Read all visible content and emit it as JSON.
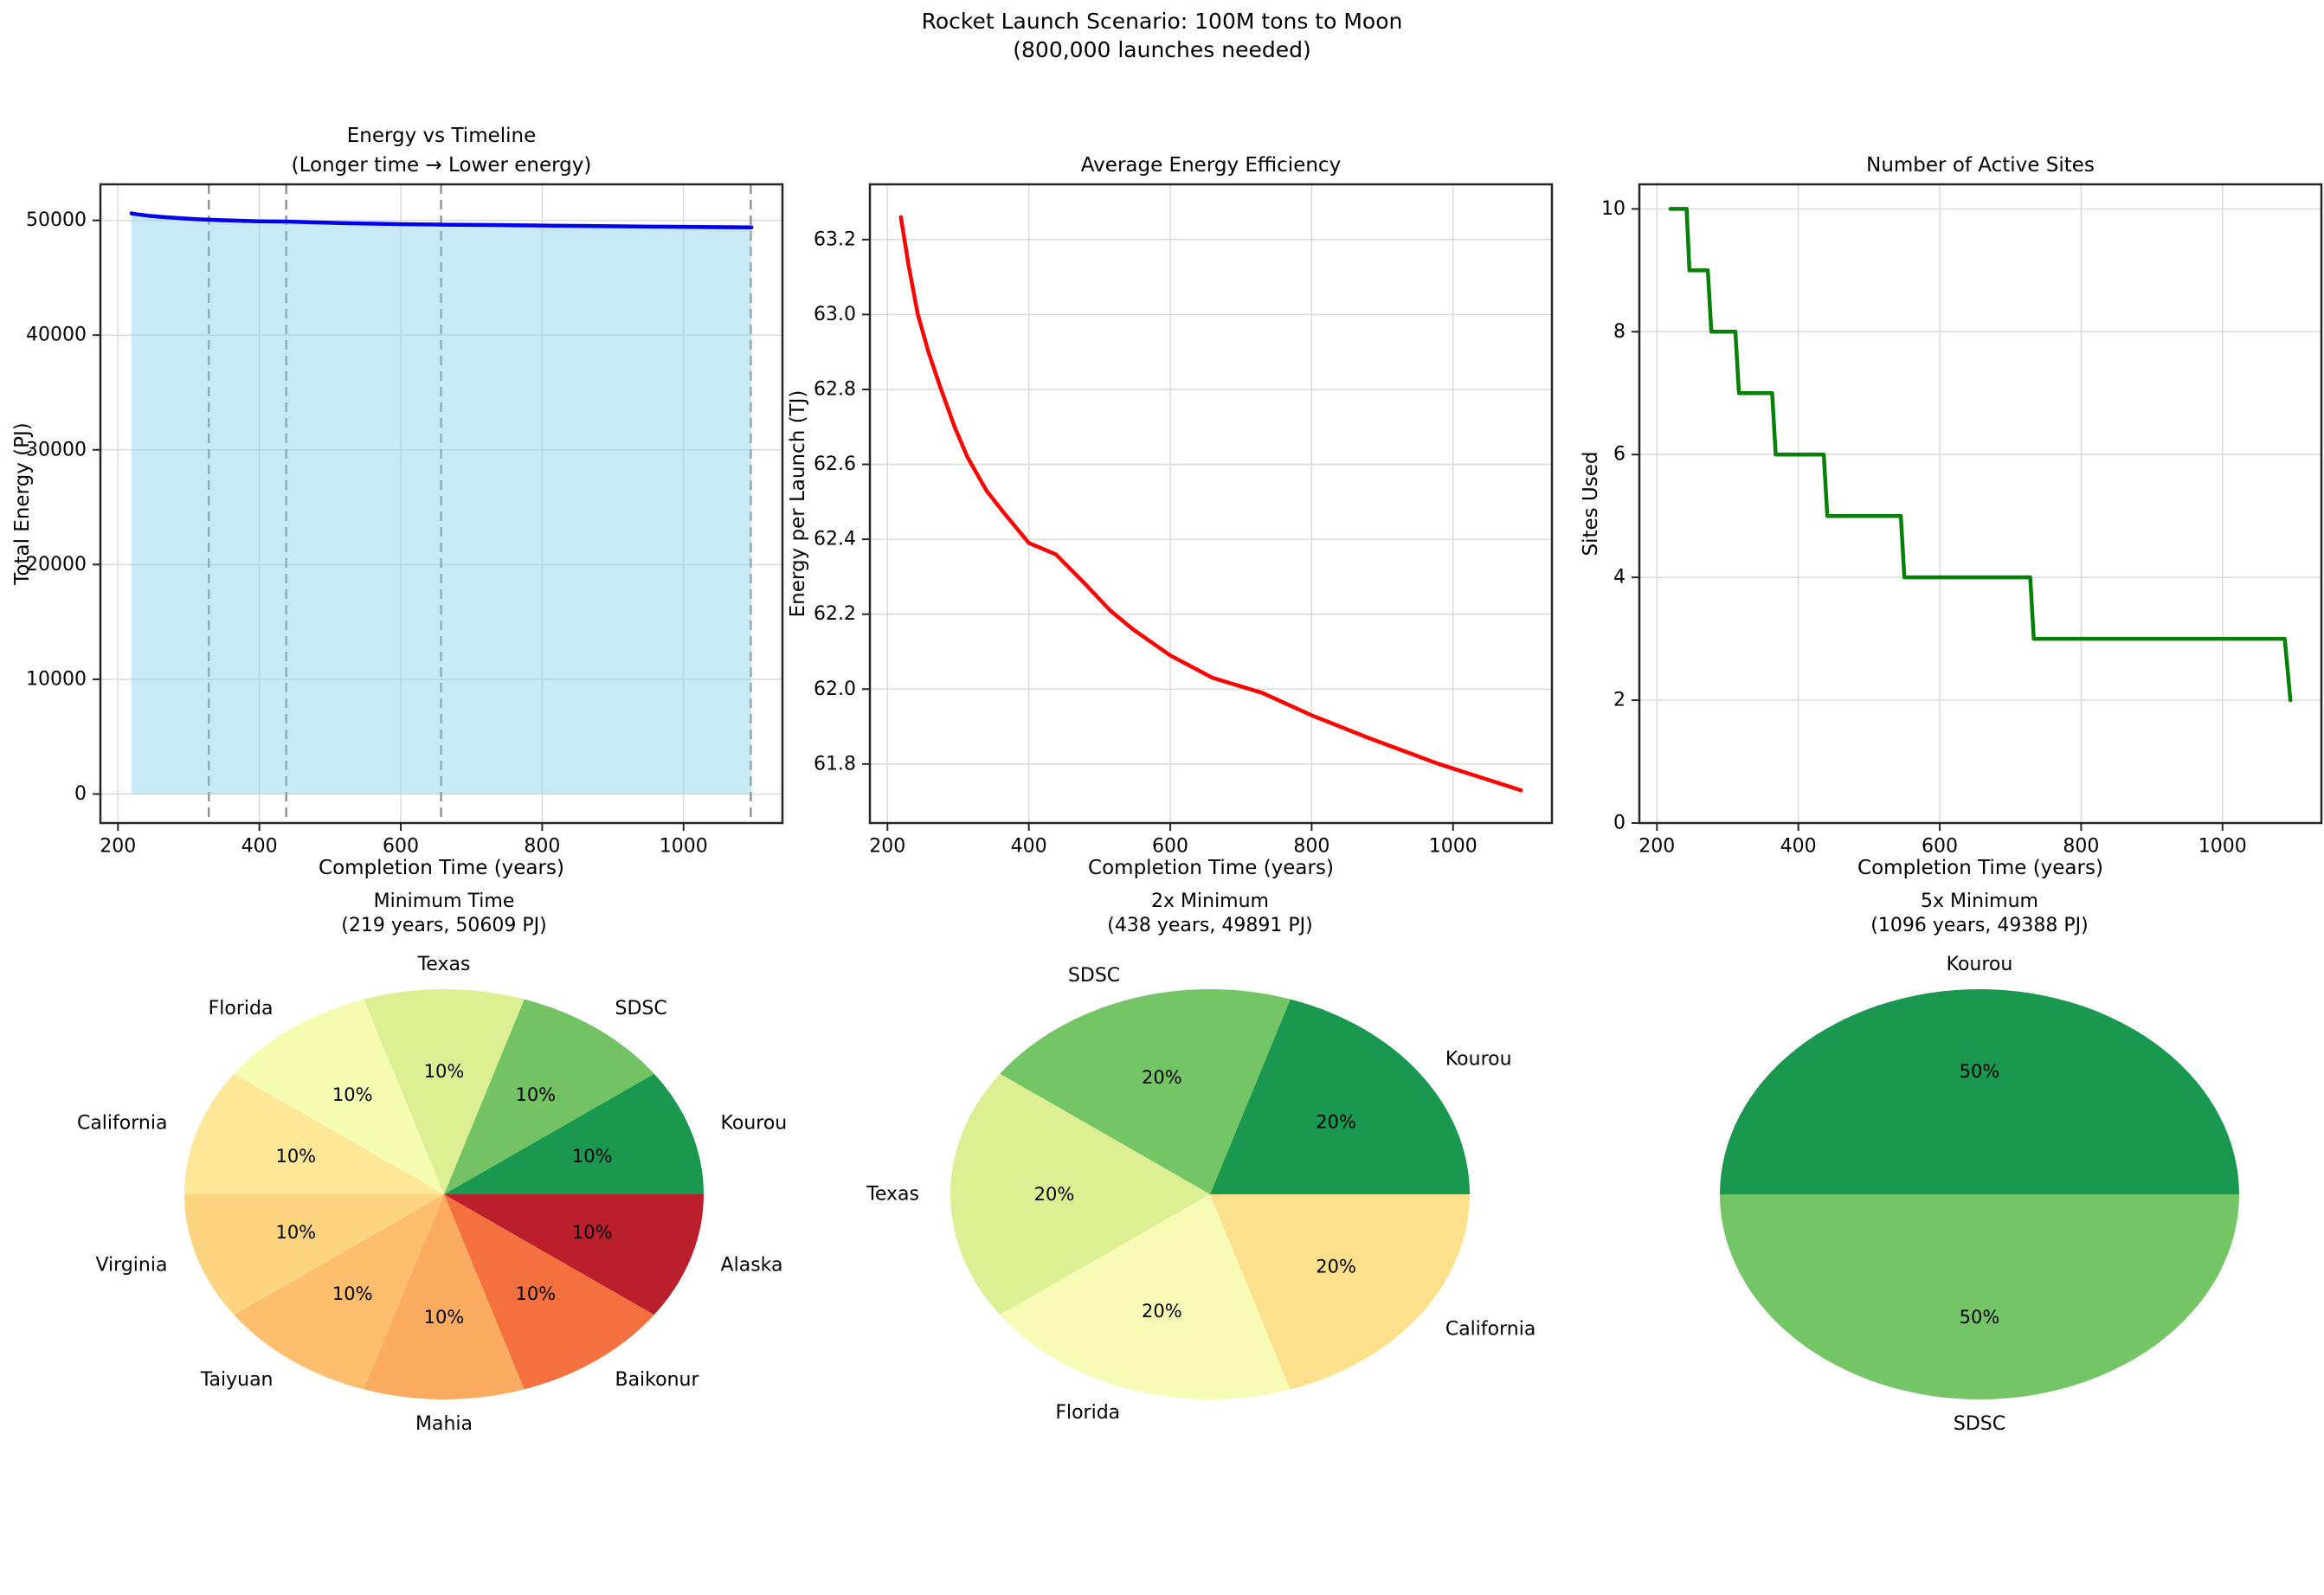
{
  "figure": {
    "suptitle_line1": "Rocket Launch Scenario: 100M tons to Moon",
    "suptitle_line2": "(800,000 launches needed)"
  },
  "chart_data": [
    {
      "id": "energy-vs-timeline",
      "type": "area",
      "title1": "Energy vs Timeline",
      "title2": "(Longer time → Lower energy)",
      "xlabel": "Completion Time (years)",
      "ylabel": "Total Energy (PJ)",
      "xlim": [
        175.15,
        1139.85
      ],
      "ylim": [
        -2530,
        53139
      ],
      "xticks": [
        200,
        400,
        600,
        800,
        1000
      ],
      "xtick_labels": [
        "200",
        "400",
        "600",
        "800",
        "1000"
      ],
      "yticks": [
        0,
        10000,
        20000,
        30000,
        40000,
        50000
      ],
      "ytick_labels": [
        "0",
        "10000",
        "20000",
        "30000",
        "40000",
        "50000"
      ],
      "grid": true,
      "line_color": "#0000ee",
      "fill_color": "rgba(135,206,235,0.45)",
      "fill_baseline": 0,
      "vlines": {
        "x": [
          328.5,
          438,
          657,
          1095
        ],
        "color": "#8f8f8f",
        "dash": "11 7"
      },
      "x": [
        219,
        230,
        243,
        258,
        274,
        295,
        313,
        340,
        365,
        400,
        438,
        480,
        515,
        547,
        600,
        660,
        730,
        800,
        880,
        980,
        1096
      ],
      "y": [
        50609,
        50504,
        50400,
        50320,
        50248,
        50160,
        50096,
        50024,
        49976,
        49912,
        49891,
        49824,
        49768,
        49728,
        49672,
        49624,
        49592,
        49544,
        49496,
        49440,
        49388
      ]
    },
    {
      "id": "average-energy-efficiency",
      "type": "line",
      "title1": "Average Energy Efficiency",
      "title2": "",
      "xlabel": "Completion Time (years)",
      "ylabel": "Energy per Launch (TJ)",
      "xlim": [
        175.15,
        1139.85
      ],
      "ylim": [
        61.6425,
        63.3475
      ],
      "xticks": [
        200,
        400,
        600,
        800,
        1000
      ],
      "xtick_labels": [
        "200",
        "400",
        "600",
        "800",
        "1000"
      ],
      "yticks": [
        61.8,
        62.0,
        62.2,
        62.4,
        62.6,
        62.8,
        63.0,
        63.2
      ],
      "ytick_labels": [
        "61.8",
        "62.0",
        "62.2",
        "62.4",
        "62.6",
        "62.8",
        "63.0",
        "63.2"
      ],
      "grid": true,
      "line_color": "#ff0000",
      "x": [
        219,
        230,
        243,
        258,
        274,
        295,
        313,
        340,
        365,
        400,
        438,
        480,
        515,
        547,
        600,
        660,
        730,
        800,
        880,
        980,
        1096
      ],
      "y": [
        63.26,
        63.13,
        63.0,
        62.9,
        62.81,
        62.7,
        62.62,
        62.53,
        62.47,
        62.39,
        62.36,
        62.28,
        62.21,
        62.16,
        62.09,
        62.03,
        61.99,
        61.93,
        61.87,
        61.8,
        61.73
      ]
    },
    {
      "id": "number-of-active-sites",
      "type": "step",
      "title1": "Number of Active Sites",
      "title2": "",
      "xlabel": "Completion Time (years)",
      "ylabel": "Sites Used",
      "xlim": [
        175.15,
        1139.85
      ],
      "ylim": [
        0,
        10.4
      ],
      "xticks": [
        200,
        400,
        600,
        800,
        1000
      ],
      "xtick_labels": [
        "200",
        "400",
        "600",
        "800",
        "1000"
      ],
      "yticks": [
        0,
        2,
        4,
        6,
        8,
        10
      ],
      "ytick_labels": [
        "0",
        "2",
        "4",
        "6",
        "8",
        "10"
      ],
      "grid": true,
      "line_color": "#078007",
      "x": [
        219,
        242,
        246,
        272,
        277,
        311,
        316,
        363,
        368,
        436,
        441,
        545,
        550,
        728,
        733,
        1088,
        1096
      ],
      "y": [
        10,
        10,
        9,
        9,
        8,
        8,
        7,
        7,
        6,
        6,
        5,
        5,
        4,
        4,
        3,
        3,
        2
      ]
    },
    {
      "id": "pie-minimum-time",
      "type": "pie",
      "title1": "Minimum Time",
      "title2": "(219 years, 50609 PJ)",
      "slices": [
        {
          "label": "Kourou",
          "value": 10,
          "pct_label": "10%",
          "color": "#1a9850"
        },
        {
          "label": "SDSC",
          "value": 10,
          "pct_label": "10%",
          "color": "#73c365"
        },
        {
          "label": "Texas",
          "value": 10,
          "pct_label": "10%",
          "color": "#dcf093"
        },
        {
          "label": "Florida",
          "value": 10,
          "pct_label": "10%",
          "color": "#f5fbb1"
        },
        {
          "label": "California",
          "value": 10,
          "pct_label": "10%",
          "color": "#fee797"
        },
        {
          "label": "Virginia",
          "value": 10,
          "pct_label": "10%",
          "color": "#fdd480"
        },
        {
          "label": "Taiyuan",
          "value": 10,
          "pct_label": "10%",
          "color": "#fdbf6e"
        },
        {
          "label": "Mahia",
          "value": 10,
          "pct_label": "10%",
          "color": "#fcac60"
        },
        {
          "label": "Baikonur",
          "value": 10,
          "pct_label": "10%",
          "color": "#f4713f"
        },
        {
          "label": "Alaska",
          "value": 10,
          "pct_label": "10%",
          "color": "#bb1f2c"
        }
      ]
    },
    {
      "id": "pie-2x-minimum",
      "type": "pie",
      "title1": "2x Minimum",
      "title2": "(438 years, 49891 PJ)",
      "slices": [
        {
          "label": "Kourou",
          "value": 20,
          "pct_label": "20%",
          "color": "#1a9850"
        },
        {
          "label": "SDSC",
          "value": 20,
          "pct_label": "20%",
          "color": "#74c566"
        },
        {
          "label": "Texas",
          "value": 20,
          "pct_label": "20%",
          "color": "#dcf093"
        },
        {
          "label": "Florida",
          "value": 20,
          "pct_label": "20%",
          "color": "#f7fbb6"
        },
        {
          "label": "California",
          "value": 20,
          "pct_label": "20%",
          "color": "#fde08c"
        }
      ]
    },
    {
      "id": "pie-5x-minimum",
      "type": "pie",
      "title1": "5x Minimum",
      "title2": "(1096 years, 49388 PJ)",
      "slices": [
        {
          "label": "Kourou",
          "value": 50,
          "pct_label": "50%",
          "color": "#1a9850"
        },
        {
          "label": "SDSC",
          "value": 50,
          "pct_label": "50%",
          "color": "#74c566"
        }
      ]
    }
  ]
}
